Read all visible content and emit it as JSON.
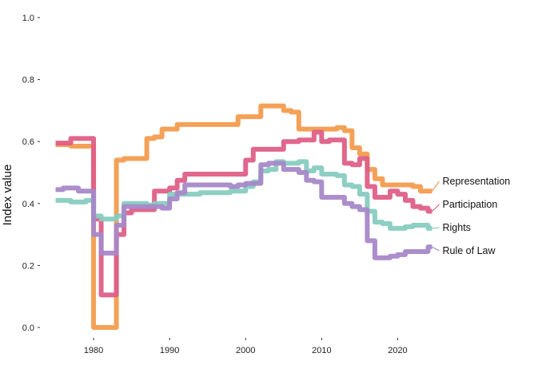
{
  "chart_data": {
    "type": "line",
    "ylabel": "Index value",
    "xlabel": "",
    "title": "",
    "ylim": [
      0,
      1
    ],
    "xlim": [
      1974,
      2025
    ],
    "y_ticks": [
      "0.0",
      "0.2",
      "0.4",
      "0.6",
      "0.8",
      "1.0"
    ],
    "x_ticks": [
      "1980",
      "1990",
      "2000",
      "2010",
      "2020"
    ],
    "grid": false,
    "legend": "direct labels at line ends (right)",
    "x": [
      1975,
      1976,
      1977,
      1978,
      1979,
      1980,
      1981,
      1982,
      1983,
      1984,
      1985,
      1986,
      1987,
      1988,
      1989,
      1990,
      1991,
      1992,
      1993,
      1994,
      1995,
      1996,
      1997,
      1998,
      1999,
      2000,
      2001,
      2002,
      2003,
      2004,
      2005,
      2006,
      2007,
      2008,
      2009,
      2010,
      2011,
      2012,
      2013,
      2014,
      2015,
      2016,
      2017,
      2018,
      2019,
      2020,
      2021,
      2022,
      2023,
      2024
    ],
    "series": [
      {
        "name": "Representation",
        "color": "#F39C4F",
        "values": [
          0.59,
          0.59,
          0.585,
          0.585,
          0.585,
          0.0,
          0.0,
          0.0,
          0.54,
          0.545,
          0.545,
          0.545,
          0.61,
          0.615,
          0.64,
          0.64,
          0.655,
          0.655,
          0.655,
          0.655,
          0.655,
          0.655,
          0.655,
          0.655,
          0.68,
          0.68,
          0.68,
          0.715,
          0.715,
          0.715,
          0.7,
          0.695,
          0.64,
          0.64,
          0.64,
          0.64,
          0.64,
          0.645,
          0.635,
          0.58,
          0.56,
          0.51,
          0.48,
          0.46,
          0.46,
          0.46,
          0.46,
          0.455,
          0.44,
          0.44
        ]
      },
      {
        "name": "Participation",
        "color": "#DE5F87",
        "values": [
          0.595,
          0.595,
          0.61,
          0.61,
          0.61,
          0.35,
          0.105,
          0.105,
          0.3,
          0.37,
          0.38,
          0.38,
          0.38,
          0.44,
          0.44,
          0.45,
          0.475,
          0.495,
          0.495,
          0.495,
          0.495,
          0.495,
          0.495,
          0.495,
          0.495,
          0.54,
          0.575,
          0.575,
          0.575,
          0.575,
          0.6,
          0.6,
          0.605,
          0.605,
          0.63,
          0.6,
          0.605,
          0.605,
          0.53,
          0.525,
          0.545,
          0.455,
          0.42,
          0.42,
          0.44,
          0.43,
          0.41,
          0.39,
          0.385,
          0.375
        ]
      },
      {
        "name": "Rights",
        "color": "#88CCC0",
        "values": [
          0.41,
          0.41,
          0.405,
          0.405,
          0.41,
          0.36,
          0.35,
          0.35,
          0.36,
          0.4,
          0.4,
          0.4,
          0.395,
          0.4,
          0.4,
          0.43,
          0.43,
          0.43,
          0.43,
          0.435,
          0.435,
          0.435,
          0.435,
          0.44,
          0.44,
          0.455,
          0.47,
          0.505,
          0.51,
          0.535,
          0.53,
          0.53,
          0.535,
          0.505,
          0.515,
          0.495,
          0.495,
          0.49,
          0.46,
          0.455,
          0.43,
          0.375,
          0.34,
          0.335,
          0.32,
          0.32,
          0.325,
          0.33,
          0.33,
          0.32
        ]
      },
      {
        "name": "Rule of Law",
        "color": "#A788C8",
        "values": [
          0.445,
          0.45,
          0.45,
          0.44,
          0.44,
          0.3,
          0.24,
          0.24,
          0.33,
          0.39,
          0.39,
          0.39,
          0.39,
          0.39,
          0.385,
          0.415,
          0.435,
          0.46,
          0.46,
          0.46,
          0.46,
          0.46,
          0.46,
          0.455,
          0.46,
          0.465,
          0.465,
          0.525,
          0.53,
          0.53,
          0.51,
          0.51,
          0.5,
          0.475,
          0.47,
          0.42,
          0.42,
          0.42,
          0.4,
          0.39,
          0.38,
          0.28,
          0.225,
          0.225,
          0.23,
          0.235,
          0.245,
          0.245,
          0.245,
          0.26
        ]
      }
    ]
  }
}
